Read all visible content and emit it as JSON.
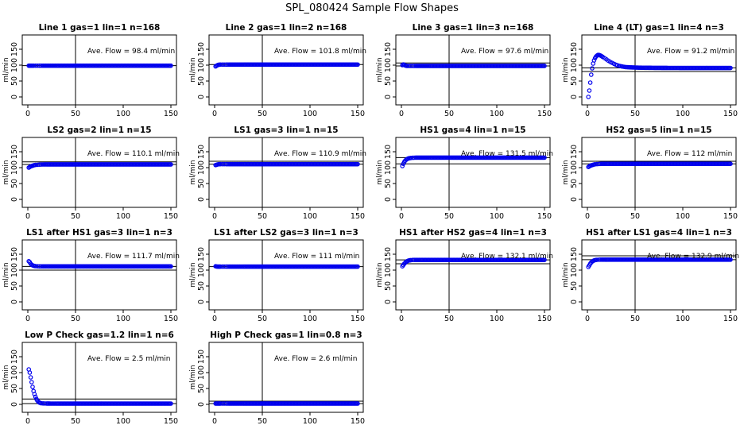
{
  "figure_title": "SPL_080424  Sample Flow Shapes",
  "chart_data": [
    {
      "type": "scatter",
      "title": "Line 1 gas=1 lin=1 n=168",
      "ylabel": "ml/min",
      "annotation": "Ave. Flow =  98.4  ml/min",
      "xlim": [
        0,
        150
      ],
      "ylim": [
        -15,
        185
      ],
      "xticks": [
        0,
        50,
        100,
        150
      ],
      "yticks": [
        0,
        50,
        100,
        150
      ],
      "vline": 50,
      "hlines": [
        98.4
      ],
      "start": "flat",
      "flat_value": 98.4,
      "points_x": [
        1,
        2,
        3,
        4,
        5,
        6,
        8,
        10,
        12,
        15,
        20,
        25,
        30,
        40,
        60,
        80,
        100,
        120,
        140,
        150
      ],
      "points_y": [
        98.4,
        98.4,
        98.4,
        98.4,
        98.4,
        98.4,
        98.4,
        98.4,
        98.4,
        98.4,
        98.4,
        98.4,
        98.4,
        98.4,
        98.4,
        98.4,
        98.4,
        98.4,
        98.4,
        98.4
      ]
    },
    {
      "type": "scatter",
      "title": "Line 2 gas=1 lin=2 n=168",
      "ylabel": "ml/min",
      "annotation": "Ave. Flow =  101.8  ml/min",
      "xlim": [
        0,
        150
      ],
      "ylim": [
        -15,
        185
      ],
      "xticks": [
        0,
        50,
        100,
        150
      ],
      "yticks": [
        0,
        50,
        100,
        150
      ],
      "vline": 50,
      "hlines": [
        101.8
      ],
      "points_x": [
        1,
        2,
        3,
        4,
        5,
        6,
        8,
        10,
        12,
        15,
        20,
        25,
        30,
        40,
        60,
        80,
        100,
        120,
        140,
        150
      ],
      "points_y": [
        96,
        98,
        100,
        101,
        101.5,
        101.8,
        101.8,
        101.8,
        101.8,
        101.8,
        101.8,
        101.8,
        101.8,
        101.8,
        101.8,
        101.8,
        101.8,
        101.8,
        101.8,
        101.8
      ]
    },
    {
      "type": "scatter",
      "title": "Line 3 gas=1 lin=3 n=168",
      "ylabel": "ml/min",
      "annotation": "Ave. Flow =  97.6  ml/min",
      "xlim": [
        0,
        150
      ],
      "ylim": [
        -15,
        185
      ],
      "xticks": [
        0,
        50,
        100,
        150
      ],
      "yticks": [
        0,
        50,
        100,
        150
      ],
      "vline": 50,
      "hlines": [
        97.6,
        107
      ],
      "points_x": [
        1,
        2,
        3,
        4,
        5,
        6,
        8,
        10,
        12,
        15,
        20,
        25,
        30,
        40,
        60,
        80,
        100,
        120,
        140,
        150
      ],
      "points_y": [
        100,
        102,
        101,
        99,
        98,
        97.6,
        97.6,
        97.6,
        97.6,
        97.6,
        97.6,
        97.6,
        97.6,
        97.6,
        97.6,
        97.6,
        97.6,
        97.6,
        97.6,
        97.6
      ]
    },
    {
      "type": "scatter",
      "title": "Line 4 (LT) gas=1 lin=4 n=3",
      "ylabel": "ml/min",
      "annotation": "Ave. Flow =  91.2  ml/min",
      "xlim": [
        0,
        150
      ],
      "ylim": [
        -15,
        185
      ],
      "xticks": [
        0,
        50,
        100,
        150
      ],
      "yticks": [
        0,
        50,
        100,
        150
      ],
      "vline": 50,
      "hlines": [
        91.2,
        80
      ],
      "points_x": [
        1,
        2,
        3,
        4,
        5,
        6,
        7,
        8,
        9,
        10,
        11,
        12,
        13,
        14,
        15,
        16,
        18,
        20,
        22,
        24,
        26,
        28,
        30,
        33,
        36,
        40,
        45,
        50,
        55,
        60,
        70,
        80,
        100,
        120,
        140,
        150
      ],
      "points_y": [
        0,
        20,
        45,
        70,
        90,
        105,
        115,
        122,
        127,
        130,
        132,
        132,
        131,
        130,
        128,
        126,
        122,
        118,
        114,
        110,
        107,
        104,
        101,
        98,
        96,
        94,
        93,
        92.5,
        92,
        91.8,
        91.5,
        91.3,
        91.2,
        91.2,
        91.2,
        91.2
      ]
    },
    {
      "type": "scatter",
      "title": "LS2 gas=2 lin=1 n=15",
      "ylabel": "ml/min",
      "annotation": "Ave. Flow =  110.1  ml/min",
      "xlim": [
        0,
        150
      ],
      "ylim": [
        -15,
        185
      ],
      "xticks": [
        0,
        50,
        100,
        150
      ],
      "yticks": [
        0,
        50,
        100,
        150
      ],
      "vline": 50,
      "hlines": [
        110.1,
        118
      ],
      "points_x": [
        1,
        2,
        3,
        4,
        5,
        6,
        7,
        8,
        10,
        12,
        15,
        20,
        30,
        40,
        60,
        80,
        100,
        120,
        140,
        150
      ],
      "points_y": [
        100,
        102,
        104,
        105,
        106,
        107,
        108,
        108.5,
        109,
        109.5,
        110,
        110.1,
        110.1,
        110.1,
        110.1,
        110.1,
        110.1,
        110.1,
        110.1,
        110.1
      ]
    },
    {
      "type": "scatter",
      "title": "LS1 gas=3 lin=1 n=15",
      "ylabel": "ml/min",
      "annotation": "Ave. Flow =  110.9  ml/min",
      "xlim": [
        0,
        150
      ],
      "ylim": [
        -15,
        185
      ],
      "xticks": [
        0,
        50,
        100,
        150
      ],
      "yticks": [
        0,
        50,
        100,
        150
      ],
      "vline": 50,
      "hlines": [
        110.9,
        120
      ],
      "points_x": [
        1,
        2,
        3,
        4,
        5,
        6,
        8,
        10,
        12,
        15,
        20,
        25,
        30,
        40,
        60,
        80,
        100,
        120,
        140,
        150
      ],
      "points_y": [
        108,
        109,
        110,
        110.5,
        110.9,
        110.9,
        110.9,
        110.9,
        110.9,
        110.9,
        110.9,
        110.9,
        110.9,
        110.9,
        110.9,
        110.9,
        110.9,
        110.9,
        110.9,
        110.9
      ]
    },
    {
      "type": "scatter",
      "title": "HS1 gas=4 lin=1 n=15",
      "ylabel": "ml/min",
      "annotation": "Ave. Flow =  131.5  ml/min",
      "xlim": [
        0,
        150
      ],
      "ylim": [
        -15,
        185
      ],
      "xticks": [
        0,
        50,
        100,
        150
      ],
      "yticks": [
        0,
        50,
        100,
        150
      ],
      "vline": 50,
      "hlines": [
        131.5,
        112
      ],
      "points_x": [
        1,
        2,
        3,
        4,
        5,
        6,
        7,
        8,
        9,
        10,
        12,
        15,
        20,
        25,
        30,
        40,
        60,
        80,
        100,
        120,
        140,
        150
      ],
      "points_y": [
        105,
        112,
        118,
        122,
        125,
        127,
        128.5,
        129.5,
        130,
        130.5,
        131,
        131.5,
        131.5,
        131.5,
        131.5,
        131.5,
        131.5,
        131.5,
        131.5,
        131.5,
        131.5,
        131.5
      ]
    },
    {
      "type": "scatter",
      "title": "HS2 gas=5 lin=1 n=15",
      "ylabel": "ml/min",
      "annotation": "Ave. Flow =  112  ml/min",
      "xlim": [
        0,
        150
      ],
      "ylim": [
        -15,
        185
      ],
      "xticks": [
        0,
        50,
        100,
        150
      ],
      "yticks": [
        0,
        50,
        100,
        150
      ],
      "vline": 50,
      "hlines": [
        112,
        120
      ],
      "points_x": [
        1,
        2,
        3,
        4,
        5,
        6,
        7,
        8,
        10,
        12,
        15,
        20,
        30,
        40,
        60,
        80,
        100,
        120,
        140,
        150
      ],
      "points_y": [
        102,
        104,
        106,
        107,
        108,
        109,
        110,
        110.5,
        111,
        111.5,
        112,
        112,
        112,
        112,
        112,
        112,
        112,
        112,
        112,
        112
      ]
    },
    {
      "type": "scatter",
      "title": "LS1 after HS1 gas=3 lin=1 n=3",
      "ylabel": "ml/min",
      "annotation": "Ave. Flow =  111.7  ml/min",
      "xlim": [
        0,
        150
      ],
      "ylim": [
        -15,
        185
      ],
      "xticks": [
        0,
        50,
        100,
        150
      ],
      "yticks": [
        0,
        50,
        100,
        150
      ],
      "vline": 50,
      "hlines": [
        111.7,
        100
      ],
      "points_x": [
        1,
        2,
        3,
        4,
        5,
        6,
        7,
        8,
        10,
        12,
        15,
        20,
        30,
        40,
        60,
        80,
        100,
        120,
        140,
        150
      ],
      "points_y": [
        128,
        125,
        120,
        117,
        115,
        114,
        113,
        112.5,
        112,
        111.8,
        111.7,
        111.7,
        111.7,
        111.7,
        111.7,
        111.7,
        111.7,
        111.7,
        111.7,
        111.7
      ]
    },
    {
      "type": "scatter",
      "title": "LS1 after LS2 gas=3 lin=1 n=3",
      "ylabel": "ml/min",
      "annotation": "Ave. Flow =  111  ml/min",
      "xlim": [
        0,
        150
      ],
      "ylim": [
        -15,
        185
      ],
      "xticks": [
        0,
        50,
        100,
        150
      ],
      "yticks": [
        0,
        50,
        100,
        150
      ],
      "vline": 50,
      "hlines": [
        111
      ],
      "points_x": [
        1,
        2,
        3,
        4,
        5,
        6,
        8,
        10,
        12,
        15,
        20,
        25,
        30,
        40,
        60,
        80,
        100,
        120,
        140,
        150
      ],
      "points_y": [
        112,
        111.5,
        111,
        111,
        111,
        111,
        111,
        111,
        111,
        111,
        111,
        111,
        111,
        111,
        111,
        111,
        111,
        111,
        111,
        111
      ]
    },
    {
      "type": "scatter",
      "title": "HS1 after HS2 gas=4 lin=1 n=3",
      "ylabel": "ml/min",
      "annotation": "Ave. Flow =  132.1  ml/min",
      "xlim": [
        0,
        150
      ],
      "ylim": [
        -15,
        185
      ],
      "xticks": [
        0,
        50,
        100,
        150
      ],
      "yticks": [
        0,
        50,
        100,
        150
      ],
      "vline": 50,
      "hlines": [
        132.1,
        120
      ],
      "points_x": [
        1,
        2,
        3,
        4,
        5,
        6,
        7,
        8,
        9,
        10,
        12,
        15,
        20,
        30,
        40,
        60,
        80,
        100,
        120,
        140,
        150
      ],
      "points_y": [
        112,
        116,
        120,
        123,
        126,
        128,
        129.5,
        130.5,
        131,
        131.5,
        132,
        132.1,
        132.1,
        132.1,
        132.1,
        132.1,
        132.1,
        132.1,
        132.1,
        132.1,
        132.1
      ]
    },
    {
      "type": "scatter",
      "title": "HS1 after LS1 gas=4 lin=1 n=3",
      "ylabel": "ml/min",
      "annotation": "Ave. Flow =  132.9  ml/min",
      "xlim": [
        0,
        150
      ],
      "ylim": [
        -15,
        185
      ],
      "xticks": [
        0,
        50,
        100,
        150
      ],
      "yticks": [
        0,
        50,
        100,
        150
      ],
      "vline": 50,
      "hlines": [
        132.9,
        145
      ],
      "points_x": [
        1,
        2,
        3,
        4,
        5,
        6,
        7,
        8,
        9,
        10,
        12,
        15,
        20,
        30,
        40,
        60,
        80,
        100,
        120,
        140,
        150
      ],
      "points_y": [
        110,
        115,
        120,
        124,
        127,
        129,
        130.5,
        131.5,
        132,
        132.5,
        132.8,
        132.9,
        132.9,
        132.9,
        132.9,
        132.9,
        132.9,
        132.9,
        132.9,
        132.9,
        132.9
      ]
    },
    {
      "type": "scatter",
      "title": "Low P Check gas=1.2 lin=1 n=6",
      "ylabel": "ml/min",
      "annotation": "Ave. Flow =  2.5  ml/min",
      "xlim": [
        0,
        150
      ],
      "ylim": [
        -15,
        185
      ],
      "xticks": [
        0,
        50,
        100,
        150
      ],
      "yticks": [
        0,
        50,
        100,
        150
      ],
      "vline": 50,
      "hlines": [
        2.5,
        17
      ],
      "points_x": [
        1,
        2,
        3,
        4,
        5,
        6,
        7,
        8,
        9,
        10,
        11,
        12,
        13,
        14,
        16,
        18,
        20,
        25,
        30,
        40,
        60,
        80,
        100,
        120,
        140,
        150
      ],
      "points_y": [
        110,
        100,
        85,
        70,
        55,
        42,
        32,
        24,
        17,
        12,
        8,
        6,
        4.5,
        3.5,
        3,
        2.8,
        2.6,
        2.5,
        2.5,
        2.5,
        2.5,
        2.5,
        2.5,
        2.5,
        2.5,
        2.5
      ]
    },
    {
      "type": "scatter",
      "title": "High P Check gas=1 lin=0.8 n=3",
      "ylabel": "ml/min",
      "annotation": "Ave. Flow =  2.6  ml/min",
      "xlim": [
        0,
        150
      ],
      "ylim": [
        -15,
        185
      ],
      "xticks": [
        0,
        50,
        100,
        150
      ],
      "yticks": [
        0,
        50,
        100,
        150
      ],
      "vline": 50,
      "hlines": [
        2.6,
        10
      ],
      "points_x": [
        1,
        2,
        3,
        4,
        5,
        6,
        8,
        10,
        12,
        15,
        20,
        25,
        30,
        40,
        60,
        80,
        100,
        120,
        140,
        150
      ],
      "points_y": [
        2.6,
        2.6,
        2.6,
        2.6,
        2.6,
        2.6,
        2.6,
        2.6,
        2.6,
        2.6,
        2.6,
        2.6,
        2.6,
        2.6,
        2.6,
        2.6,
        2.6,
        2.6,
        2.6,
        2.6
      ]
    }
  ]
}
